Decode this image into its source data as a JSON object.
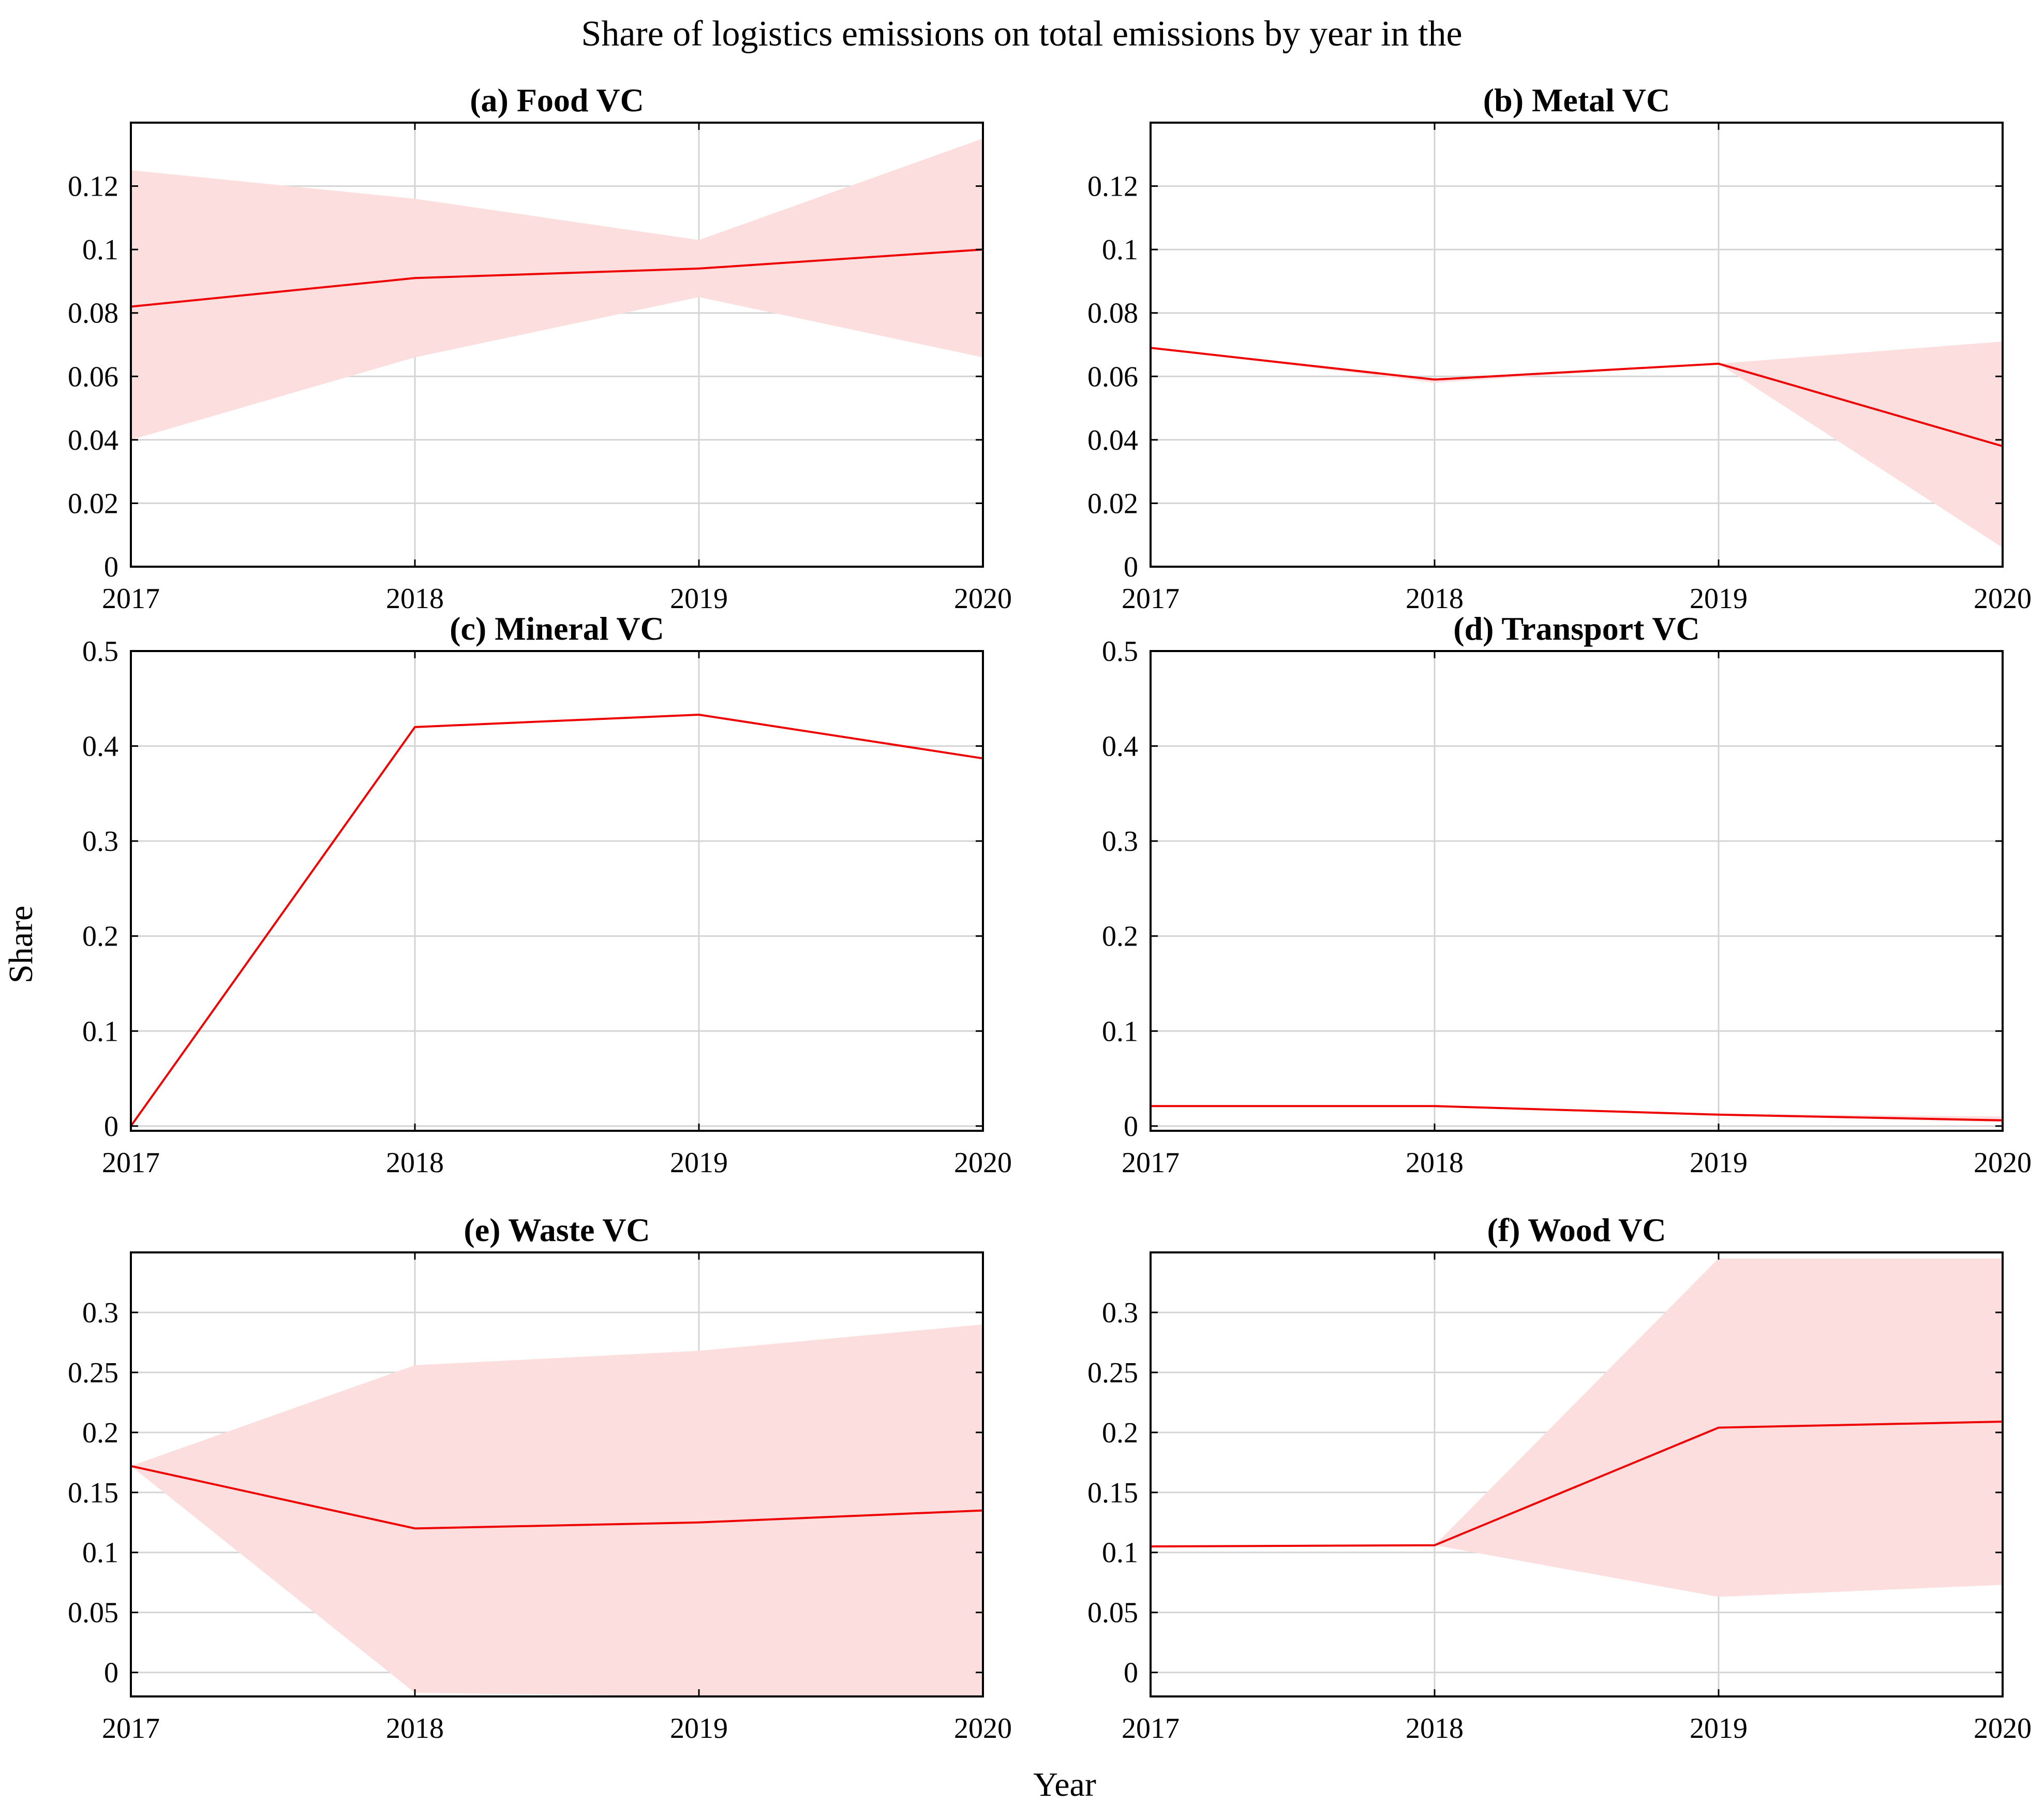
{
  "figure": {
    "title": "Share of logistics emissions on total emissions by year in the",
    "xlabel": "Year",
    "ylabel": "Share"
  },
  "colors": {
    "line": "#ee0000",
    "band": "#fcdede",
    "grid": "#d4d4d4",
    "axes": "#000000"
  },
  "chart_data": [
    {
      "type": "line",
      "title": "(a) Food VC",
      "x": [
        2017,
        2018,
        2019,
        2020
      ],
      "xticks": [
        "2017",
        "2018",
        "2019",
        "2020"
      ],
      "series": [
        {
          "name": "Share",
          "values": [
            0.082,
            0.091,
            0.094,
            0.1
          ]
        }
      ],
      "band": {
        "upper": [
          0.125,
          0.116,
          0.103,
          0.135
        ],
        "lower": [
          0.04,
          0.066,
          0.085,
          0.066
        ]
      },
      "ylim": [
        0,
        0.14
      ],
      "yticks": [
        0,
        0.02,
        0.04,
        0.06,
        0.08,
        0.1,
        0.12
      ],
      "ytick_labels": [
        "0",
        "0.02",
        "0.04",
        "0.06",
        "0.08",
        "0.1",
        "0.12"
      ],
      "grid": true
    },
    {
      "type": "line",
      "title": "(b) Metal VC",
      "x": [
        2017,
        2018,
        2019,
        2020
      ],
      "xticks": [
        "2017",
        "2018",
        "2019",
        "2020"
      ],
      "series": [
        {
          "name": "Share",
          "values": [
            0.069,
            0.059,
            0.064,
            0.038
          ]
        }
      ],
      "band": {
        "upper": [
          0.069,
          0.059,
          0.064,
          0.071
        ],
        "lower": [
          0.069,
          0.058,
          0.064,
          0.006
        ]
      },
      "ylim": [
        0,
        0.14
      ],
      "yticks": [
        0,
        0.02,
        0.04,
        0.06,
        0.08,
        0.1,
        0.12
      ],
      "ytick_labels": [
        "0",
        "0.02",
        "0.04",
        "0.06",
        "0.08",
        "0.1",
        "0.12"
      ],
      "grid": true
    },
    {
      "type": "line",
      "title": "(c) Mineral VC",
      "x": [
        2017,
        2018,
        2019,
        2020
      ],
      "xticks": [
        "2017",
        "2018",
        "2019",
        "2020"
      ],
      "series": [
        {
          "name": "Share",
          "values": [
            0.0,
            0.42,
            0.433,
            0.387
          ]
        }
      ],
      "band": {
        "upper": [
          0.0,
          0.42,
          0.433,
          0.387
        ],
        "lower": [
          0.0,
          0.42,
          0.433,
          0.387
        ]
      },
      "ylim": [
        -0.005,
        0.5
      ],
      "yticks": [
        0,
        0.1,
        0.2,
        0.3,
        0.4,
        0.5
      ],
      "ytick_labels": [
        "0",
        "0.1",
        "0.2",
        "0.3",
        "0.4",
        "0.5"
      ],
      "grid": true
    },
    {
      "type": "line",
      "title": "(d) Transport VC",
      "x": [
        2017,
        2018,
        2019,
        2020
      ],
      "xticks": [
        "2017",
        "2018",
        "2019",
        "2020"
      ],
      "series": [
        {
          "name": "Share",
          "values": [
            0.021,
            0.021,
            0.012,
            0.006
          ]
        }
      ],
      "band": {
        "upper": [
          0.021,
          0.022,
          0.013,
          0.01
        ],
        "lower": [
          0.021,
          0.021,
          0.012,
          0.004
        ]
      },
      "ylim": [
        -0.005,
        0.5
      ],
      "yticks": [
        0,
        0.1,
        0.2,
        0.3,
        0.4,
        0.5
      ],
      "ytick_labels": [
        "0",
        "0.1",
        "0.2",
        "0.3",
        "0.4",
        "0.5"
      ],
      "grid": true
    },
    {
      "type": "line",
      "title": "(e) Waste VC",
      "x": [
        2017,
        2018,
        2019,
        2020
      ],
      "xticks": [
        "2017",
        "2018",
        "2019",
        "2020"
      ],
      "series": [
        {
          "name": "Share",
          "values": [
            0.172,
            0.12,
            0.125,
            0.135
          ]
        }
      ],
      "band": {
        "upper": [
          0.172,
          0.256,
          0.268,
          0.29
        ],
        "lower": [
          0.172,
          -0.017,
          -0.02,
          -0.02
        ]
      },
      "ylim": [
        -0.02,
        0.35
      ],
      "yticks": [
        0,
        0.05,
        0.1,
        0.15,
        0.2,
        0.25,
        0.3
      ],
      "ytick_labels": [
        "0",
        "0.05",
        "0.1",
        "0.15",
        "0.2",
        "0.25",
        "0.3"
      ],
      "grid": true
    },
    {
      "type": "line",
      "title": "(f) Wood VC",
      "x": [
        2017,
        2018,
        2019,
        2020
      ],
      "xticks": [
        "2017",
        "2018",
        "2019",
        "2020"
      ],
      "series": [
        {
          "name": "Share",
          "values": [
            0.105,
            0.106,
            0.204,
            0.209
          ]
        }
      ],
      "band": {
        "upper": [
          0.105,
          0.106,
          0.345,
          0.345
        ],
        "lower": [
          0.105,
          0.106,
          0.063,
          0.073
        ]
      },
      "ylim": [
        -0.02,
        0.35
      ],
      "yticks": [
        0,
        0.05,
        0.1,
        0.15,
        0.2,
        0.25,
        0.3
      ],
      "ytick_labels": [
        "0",
        "0.05",
        "0.1",
        "0.15",
        "0.2",
        "0.25",
        "0.3"
      ],
      "grid": true
    }
  ]
}
